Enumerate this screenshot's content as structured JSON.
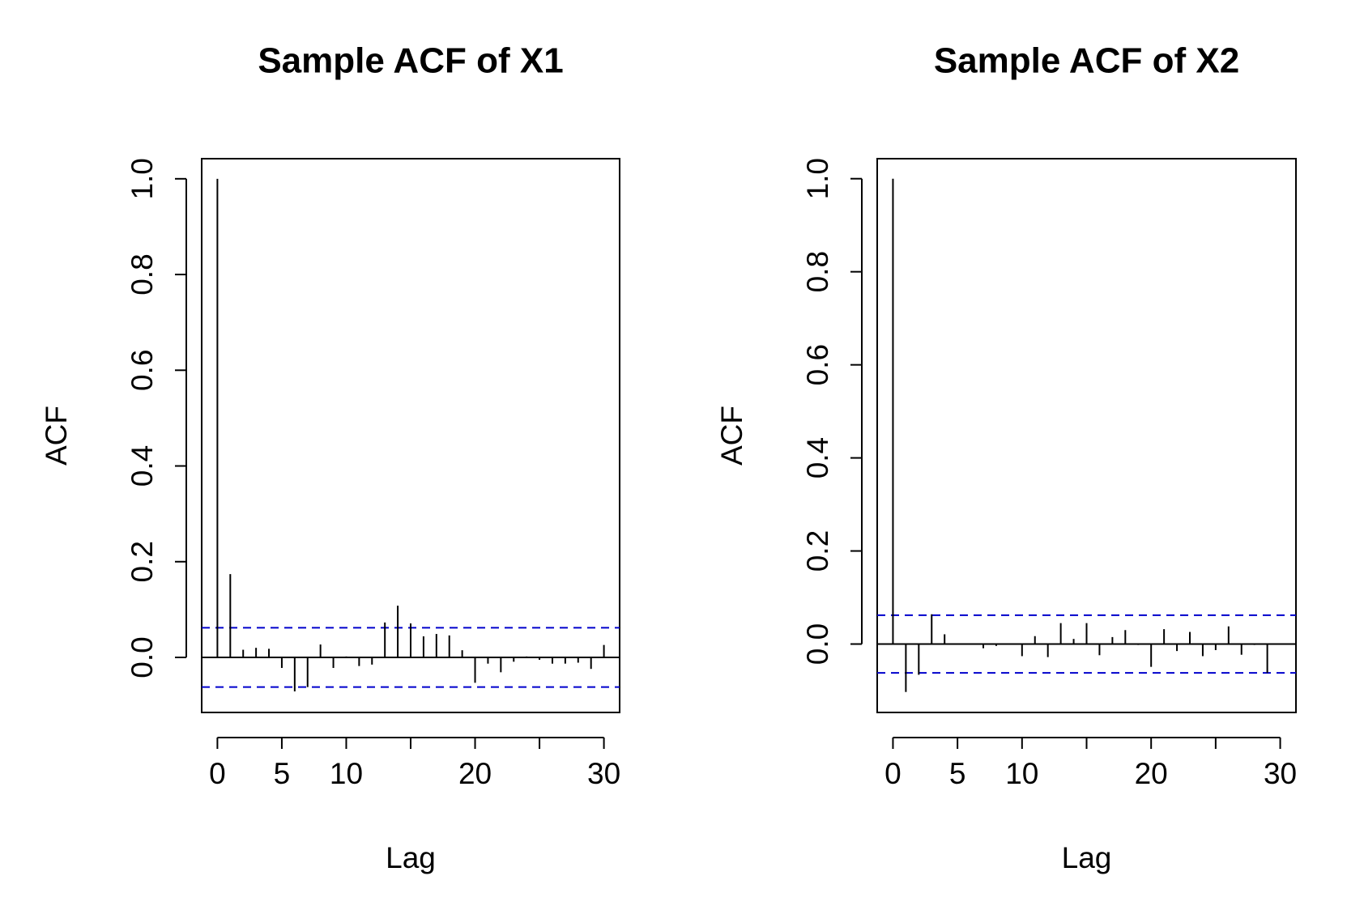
{
  "chart_data": [
    {
      "type": "acf",
      "title": "Sample ACF of X1",
      "x_label": "Lag",
      "y_label": "ACF",
      "x": [
        0,
        1,
        2,
        3,
        4,
        5,
        6,
        7,
        8,
        9,
        10,
        11,
        12,
        13,
        14,
        15,
        16,
        17,
        18,
        19,
        20,
        21,
        22,
        23,
        24,
        25,
        26,
        27,
        28,
        29,
        30
      ],
      "values": [
        1.0,
        0.174,
        0.016,
        0.02,
        0.018,
        -0.022,
        -0.071,
        -0.062,
        0.027,
        -0.022,
        0.002,
        -0.018,
        -0.015,
        0.073,
        0.108,
        0.071,
        0.044,
        0.049,
        0.046,
        0.015,
        -0.053,
        -0.013,
        -0.031,
        -0.009,
        0.002,
        -0.005,
        -0.013,
        -0.013,
        -0.011,
        -0.024,
        0.026
      ],
      "color": "#000000",
      "conf_limits": [
        -0.062,
        0.062
      ],
      "conf_color": "#0000cc",
      "xlim": [
        -1.22,
        31.22
      ],
      "ylim": [
        -0.115,
        1.042
      ],
      "xticks": [
        0,
        5,
        10,
        {
          "value": 15,
          "label": null
        },
        20,
        {
          "value": 25,
          "label": null
        },
        30
      ],
      "yticks": [
        {
          "value": 0,
          "label": "0.0"
        },
        0.2,
        0.4,
        0.6,
        0.8,
        {
          "value": 1,
          "label": "1.0"
        }
      ]
    },
    {
      "type": "acf",
      "title": "Sample ACF of X2",
      "x_label": "Lag",
      "y_label": "ACF",
      "x": [
        0,
        1,
        2,
        3,
        4,
        5,
        6,
        7,
        8,
        9,
        10,
        11,
        12,
        13,
        14,
        15,
        16,
        17,
        18,
        19,
        20,
        21,
        22,
        23,
        24,
        25,
        26,
        27,
        28,
        29,
        30
      ],
      "values": [
        1.0,
        -0.103,
        -0.066,
        0.064,
        0.021,
        0.001,
        0.001,
        -0.009,
        -0.004,
        0.001,
        -0.026,
        0.017,
        -0.028,
        0.045,
        0.011,
        0.045,
        -0.024,
        0.015,
        0.03,
        -0.002,
        -0.049,
        0.032,
        -0.015,
        0.026,
        -0.026,
        -0.013,
        0.038,
        -0.023,
        -0.002,
        -0.062,
        0.001
      ],
      "color": "#000000",
      "conf_limits": [
        -0.062,
        0.062
      ],
      "conf_color": "#0000cc",
      "xlim": [
        -1.22,
        31.22
      ],
      "ylim": [
        -0.147,
        1.043
      ],
      "xticks": [
        0,
        5,
        10,
        {
          "value": 15,
          "label": null
        },
        20,
        {
          "value": 25,
          "label": null
        },
        30
      ],
      "yticks": [
        {
          "value": 0,
          "label": "0.0"
        },
        0.2,
        0.4,
        0.6,
        0.8,
        {
          "value": 1,
          "label": "1.0"
        }
      ]
    }
  ]
}
